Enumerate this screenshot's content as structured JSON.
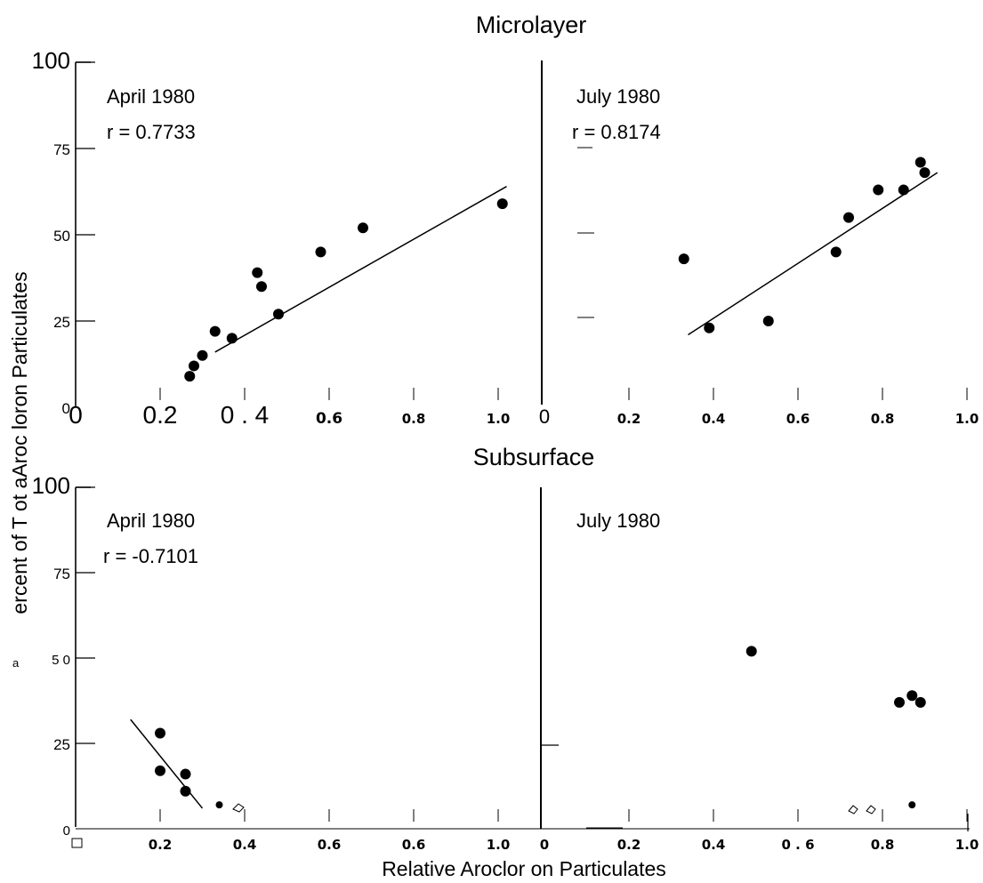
{
  "section_titles": {
    "top": "Microlayer",
    "bottom": "Subsurface"
  },
  "axis_labels": {
    "y": "ercent of T ot aAroc loron Particulates",
    "y_prefix": "a",
    "x": "Relative Aroclor on Particulates"
  },
  "colors": {
    "ink": "#000000",
    "background": "#ffffff"
  },
  "chart_data": [
    {
      "type": "scatter",
      "panel": "Microlayer - April 1980",
      "label": "April 1980",
      "stat": "r = 0.7733",
      "xlim": [
        0,
        1.0
      ],
      "ylim": [
        0,
        100
      ],
      "x_ticks": [
        "0",
        "0.2",
        "0 . 4",
        "0.6",
        "0.8",
        "1.0"
      ],
      "y_ticks": [
        "100",
        "75",
        "50",
        "25",
        "0"
      ],
      "points": [
        {
          "x": 0.27,
          "y": 9
        },
        {
          "x": 0.28,
          "y": 12
        },
        {
          "x": 0.3,
          "y": 15
        },
        {
          "x": 0.33,
          "y": 22
        },
        {
          "x": 0.37,
          "y": 20
        },
        {
          "x": 0.43,
          "y": 39
        },
        {
          "x": 0.44,
          "y": 35
        },
        {
          "x": 0.48,
          "y": 27
        },
        {
          "x": 0.58,
          "y": 45
        },
        {
          "x": 0.68,
          "y": 52
        },
        {
          "x": 1.01,
          "y": 59
        }
      ],
      "fit": [
        {
          "x": 0.33,
          "y": 16
        },
        {
          "x": 1.02,
          "y": 64
        }
      ]
    },
    {
      "type": "scatter",
      "panel": "Microlayer - July 1980",
      "label": "July 1980",
      "stat": "r = 0.8174",
      "xlim": [
        0,
        1.0
      ],
      "ylim": [
        0,
        100
      ],
      "x_ticks": [
        "0",
        "0.2",
        "0.4",
        "0.6",
        "0.8",
        "1.0"
      ],
      "y_ticks": [],
      "points": [
        {
          "x": 0.33,
          "y": 43
        },
        {
          "x": 0.39,
          "y": 23
        },
        {
          "x": 0.53,
          "y": 25
        },
        {
          "x": 0.69,
          "y": 45
        },
        {
          "x": 0.72,
          "y": 55
        },
        {
          "x": 0.79,
          "y": 63
        },
        {
          "x": 0.85,
          "y": 63
        },
        {
          "x": 0.89,
          "y": 71
        },
        {
          "x": 0.9,
          "y": 68
        }
      ],
      "fit": [
        {
          "x": 0.34,
          "y": 21
        },
        {
          "x": 0.93,
          "y": 68
        }
      ]
    },
    {
      "type": "scatter",
      "panel": "Subsurface - April 1980",
      "label": "April 1980",
      "stat": "r = -0.7101",
      "xlim": [
        0,
        1.0
      ],
      "ylim": [
        0,
        100
      ],
      "x_ticks": [
        "0.2",
        "0.4",
        "0.6",
        "0.6",
        "1.0"
      ],
      "y_ticks": [
        "100",
        "75",
        "5 0",
        "25",
        "0"
      ],
      "points": [
        {
          "x": 0.2,
          "y": 28
        },
        {
          "x": 0.2,
          "y": 17
        },
        {
          "x": 0.26,
          "y": 16
        },
        {
          "x": 0.26,
          "y": 11
        },
        {
          "x": 0.34,
          "y": 7
        }
      ],
      "fit": [
        {
          "x": 0.13,
          "y": 32
        },
        {
          "x": 0.3,
          "y": 6
        }
      ]
    },
    {
      "type": "scatter",
      "panel": "Subsurface - July 1980",
      "label": "July 1980",
      "stat": "",
      "xlim": [
        0,
        1.0
      ],
      "ylim": [
        0,
        100
      ],
      "x_ticks": [
        "0",
        "0.2",
        "0.4",
        "0 . 6",
        "0.8",
        "1.0"
      ],
      "y_ticks": [],
      "points": [
        {
          "x": 0.49,
          "y": 52
        },
        {
          "x": 0.84,
          "y": 37
        },
        {
          "x": 0.87,
          "y": 39
        },
        {
          "x": 0.89,
          "y": 37
        },
        {
          "x": 0.87,
          "y": 7
        }
      ],
      "fit": []
    }
  ]
}
